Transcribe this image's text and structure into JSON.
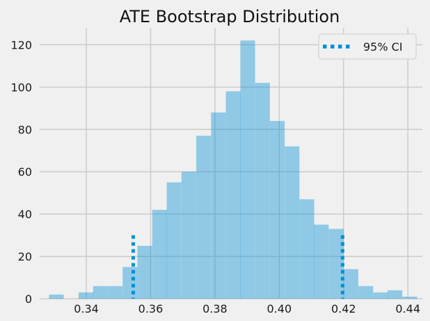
{
  "chart_data": {
    "type": "bar",
    "title": "ATE Bootstrap Distribution",
    "xlabel": "",
    "ylabel": "",
    "xlim": [
      0.3255,
      0.4445
    ],
    "ylim": [
      0,
      128
    ],
    "grid": true,
    "legend_position": "top-right",
    "bin_width": 0.00458,
    "bars": [
      {
        "x_start": 0.3284,
        "value": 2
      },
      {
        "x_start": 0.333,
        "value": 0
      },
      {
        "x_start": 0.3376,
        "value": 3
      },
      {
        "x_start": 0.3421,
        "value": 6
      },
      {
        "x_start": 0.3467,
        "value": 6
      },
      {
        "x_start": 0.3513,
        "value": 15
      },
      {
        "x_start": 0.3559,
        "value": 25
      },
      {
        "x_start": 0.3605,
        "value": 42
      },
      {
        "x_start": 0.365,
        "value": 55
      },
      {
        "x_start": 0.3696,
        "value": 60
      },
      {
        "x_start": 0.3742,
        "value": 77
      },
      {
        "x_start": 0.3788,
        "value": 88
      },
      {
        "x_start": 0.3834,
        "value": 98
      },
      {
        "x_start": 0.3879,
        "value": 122
      },
      {
        "x_start": 0.3925,
        "value": 102
      },
      {
        "x_start": 0.3971,
        "value": 84
      },
      {
        "x_start": 0.4017,
        "value": 72
      },
      {
        "x_start": 0.4063,
        "value": 47
      },
      {
        "x_start": 0.4108,
        "value": 35
      },
      {
        "x_start": 0.4154,
        "value": 33
      },
      {
        "x_start": 0.42,
        "value": 14
      },
      {
        "x_start": 0.4246,
        "value": 6
      },
      {
        "x_start": 0.4292,
        "value": 3
      },
      {
        "x_start": 0.4337,
        "value": 4
      },
      {
        "x_start": 0.4383,
        "value": 1
      }
    ],
    "ci_lines": [
      {
        "x": 0.3546,
        "y_from": 0,
        "y_to": 30
      },
      {
        "x": 0.4197,
        "y_from": 0,
        "y_to": 30
      }
    ],
    "x_ticks": [
      "0.34",
      "0.36",
      "0.38",
      "0.40",
      "0.42",
      "0.44"
    ],
    "x_tick_values": [
      0.34,
      0.36,
      0.38,
      0.4,
      0.42,
      0.44
    ],
    "y_ticks": [
      "0",
      "20",
      "40",
      "60",
      "80",
      "100",
      "120"
    ],
    "y_tick_values": [
      0,
      20,
      40,
      60,
      80,
      100,
      120
    ],
    "legend": [
      {
        "label": "95% CI",
        "style": "dotted"
      }
    ],
    "colors": {
      "bars": "#008fd5",
      "bar_opacity": 0.4,
      "ci": "#008fd5",
      "grid": "#cbcbcb",
      "background": "#f0f0f0"
    }
  }
}
